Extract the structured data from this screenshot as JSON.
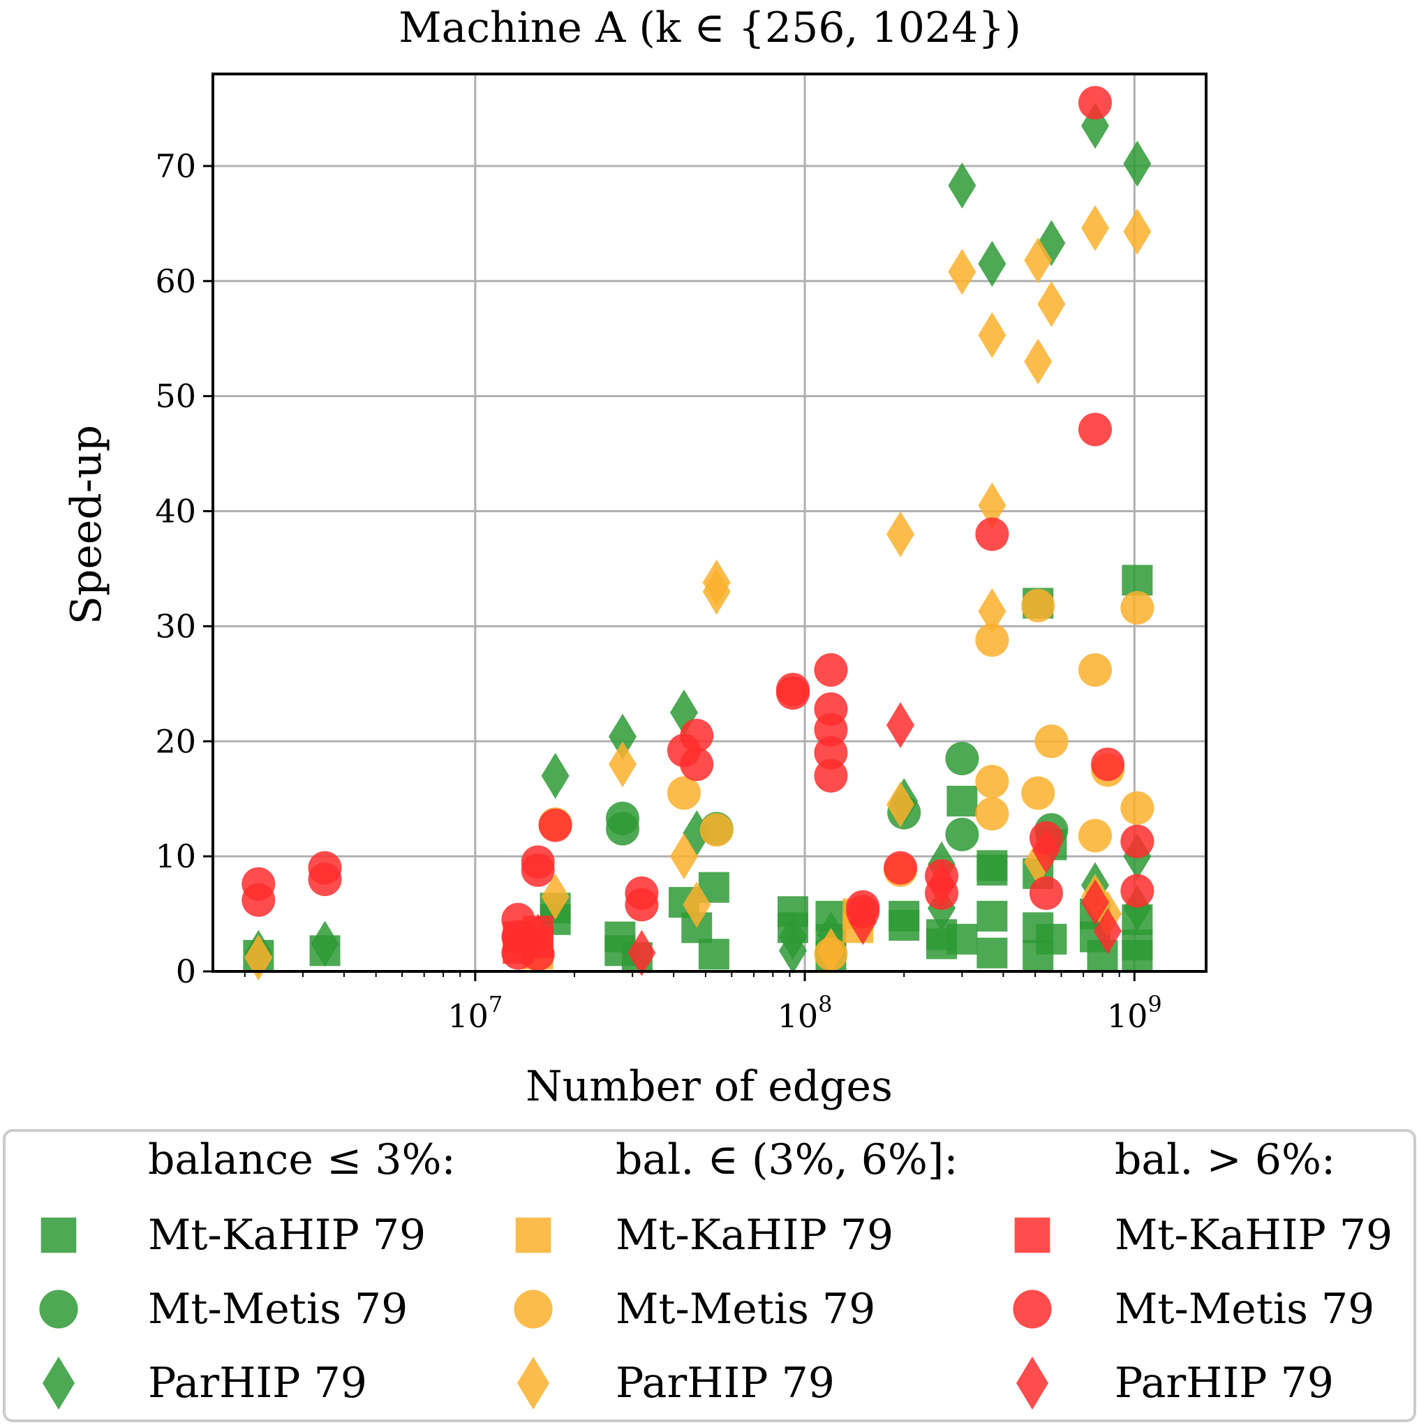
{
  "chart_data": {
    "type": "scatter",
    "title": "Machine A (k ∈ {256, 1024})",
    "xlabel": "Number of edges",
    "ylabel": "Speed-up",
    "xscale": "log",
    "xlim": [
      1600000.0,
      1650000000.0
    ],
    "ylim": [
      0,
      78
    ],
    "xticks": [
      {
        "value": 10000000.0,
        "label": "10^7"
      },
      {
        "value": 100000000.0,
        "label": "10^8"
      },
      {
        "value": 1000000000.0,
        "label": "10^9"
      }
    ],
    "yticks": [
      0,
      10,
      20,
      30,
      40,
      50,
      60,
      70
    ],
    "grid": true,
    "legend_placement": "bottom",
    "legend_groups": [
      {
        "header": "balance ≤ 3%:",
        "color": "#2e9a35"
      },
      {
        "header": "bal. ∈ (3%, 6%]:",
        "color": "#fbb02d"
      },
      {
        "header": "bal. > 6%:",
        "color": "#ff2d2d"
      }
    ],
    "series": [
      {
        "name": "Mt-KaHIP 79",
        "group": "balance ≤ 3%:",
        "marker": "square",
        "color": "#2e9a35",
        "points": [
          [
            2200000.0,
            1.4
          ],
          [
            3500000.0,
            1.8
          ],
          [
            17500000.0,
            4.5
          ],
          [
            17500000.0,
            5.5
          ],
          [
            27500000.0,
            3.0
          ],
          [
            27500000.0,
            1.8
          ],
          [
            31000000.0,
            1.2
          ],
          [
            43000000.0,
            6.0
          ],
          [
            47000000.0,
            3.8
          ],
          [
            53000000.0,
            7.3
          ],
          [
            53000000.0,
            1.5
          ],
          [
            92000000.0,
            5.2
          ],
          [
            92000000.0,
            3.8
          ],
          [
            120000000.0,
            4.8
          ],
          [
            120000000.0,
            2.8
          ],
          [
            120000000.0,
            1.4
          ],
          [
            200000000.0,
            4.8
          ],
          [
            200000000.0,
            4.0
          ],
          [
            260000000.0,
            3.2
          ],
          [
            260000000.0,
            2.4
          ],
          [
            300000000.0,
            14.8
          ],
          [
            300000000.0,
            2.8
          ],
          [
            370000000.0,
            9.2
          ],
          [
            370000000.0,
            8.8
          ],
          [
            370000000.0,
            4.8
          ],
          [
            370000000.0,
            1.6
          ],
          [
            510000000.0,
            32.0
          ],
          [
            510000000.0,
            8.5
          ],
          [
            510000000.0,
            3.8
          ],
          [
            510000000.0,
            1.4
          ],
          [
            560000000.0,
            11.0
          ],
          [
            560000000.0,
            2.8
          ],
          [
            760000000.0,
            5.0
          ],
          [
            760000000.0,
            3.0
          ],
          [
            800000000.0,
            1.4
          ],
          [
            1020000000.0,
            34.0
          ],
          [
            1020000000.0,
            4.5
          ],
          [
            1020000000.0,
            2.3
          ],
          [
            1020000000.0,
            1.4
          ]
        ]
      },
      {
        "name": "Mt-Metis 79",
        "group": "balance ≤ 3%:",
        "marker": "circle",
        "color": "#2e9a35",
        "points": [
          [
            28000000.0,
            13.3
          ],
          [
            28000000.0,
            12.4
          ],
          [
            54000000.0,
            12.4
          ],
          [
            200000000.0,
            13.8
          ],
          [
            300000000.0,
            18.5
          ],
          [
            300000000.0,
            11.9
          ],
          [
            560000000.0,
            12.3
          ]
        ]
      },
      {
        "name": "ParHIP 79",
        "group": "balance ≤ 3%:",
        "marker": "diamond",
        "color": "#2e9a35",
        "points": [
          [
            2200000.0,
            1.6
          ],
          [
            3500000.0,
            2.4
          ],
          [
            17500000.0,
            17.0
          ],
          [
            28000000.0,
            20.4
          ],
          [
            43000000.0,
            22.5
          ],
          [
            47000000.0,
            12.0
          ],
          [
            92000000.0,
            3.0
          ],
          [
            92000000.0,
            1.8
          ],
          [
            120000000.0,
            3.2
          ],
          [
            200000000.0,
            14.8
          ],
          [
            260000000.0,
            9.3
          ],
          [
            260000000.0,
            5.5
          ],
          [
            300000000.0,
            68.3
          ],
          [
            370000000.0,
            61.5
          ],
          [
            560000000.0,
            63.3
          ],
          [
            760000000.0,
            73.5
          ],
          [
            760000000.0,
            7.5
          ],
          [
            1020000000.0,
            70.2
          ],
          [
            1020000000.0,
            10.0
          ],
          [
            1020000000.0,
            5.5
          ]
        ]
      },
      {
        "name": "Mt-KaHIP 79",
        "group": "bal. ∈ (3%, 6%]:",
        "marker": "square",
        "color": "#fbb02d",
        "points": [
          [
            15500000.0,
            1.5
          ],
          [
            145000000.0,
            3.8
          ],
          [
            145000000.0,
            5.0
          ]
        ]
      },
      {
        "name": "Mt-Metis 79",
        "group": "bal. ∈ (3%, 6%]:",
        "marker": "circle",
        "color": "#fbb02d",
        "points": [
          [
            17500000.0,
            12.8
          ],
          [
            43000000.0,
            15.5
          ],
          [
            54000000.0,
            12.3
          ],
          [
            120000000.0,
            1.5
          ],
          [
            195000000.0,
            8.8
          ],
          [
            370000000.0,
            28.8
          ],
          [
            370000000.0,
            16.5
          ],
          [
            370000000.0,
            13.7
          ],
          [
            510000000.0,
            31.8
          ],
          [
            510000000.0,
            15.5
          ],
          [
            560000000.0,
            20.0
          ],
          [
            760000000.0,
            26.2
          ],
          [
            760000000.0,
            11.8
          ],
          [
            830000000.0,
            17.5
          ],
          [
            1020000000.0,
            31.6
          ],
          [
            1020000000.0,
            14.2
          ]
        ]
      },
      {
        "name": "ParHIP 79",
        "group": "bal. ∈ (3%, 6%]:",
        "marker": "diamond",
        "color": "#fbb02d",
        "points": [
          [
            2200000.0,
            1.2
          ],
          [
            17500000.0,
            6.5
          ],
          [
            28000000.0,
            18.0
          ],
          [
            43000000.0,
            10.0
          ],
          [
            47000000.0,
            5.8
          ],
          [
            54000000.0,
            33.8
          ],
          [
            54000000.0,
            33.0
          ],
          [
            120000000.0,
            1.8
          ],
          [
            195000000.0,
            38.0
          ],
          [
            195000000.0,
            14.5
          ],
          [
            300000000.0,
            60.8
          ],
          [
            370000000.0,
            55.3
          ],
          [
            370000000.0,
            40.5
          ],
          [
            370000000.0,
            31.3
          ],
          [
            510000000.0,
            61.8
          ],
          [
            510000000.0,
            53.0
          ],
          [
            510000000.0,
            9.5
          ],
          [
            560000000.0,
            58.0
          ],
          [
            760000000.0,
            64.6
          ],
          [
            760000000.0,
            6.5
          ],
          [
            830000000.0,
            5.0
          ],
          [
            1020000000.0,
            64.3
          ]
        ]
      },
      {
        "name": "Mt-KaHIP 79",
        "group": "bal. > 6%:",
        "marker": "square",
        "color": "#ff2d2d",
        "points": [
          [
            13500000.0,
            3.0
          ],
          [
            13500000.0,
            2.0
          ],
          [
            15500000.0,
            3.5
          ],
          [
            15500000.0,
            2.5
          ]
        ]
      },
      {
        "name": "Mt-Metis 79",
        "group": "bal. > 6%:",
        "marker": "circle",
        "color": "#ff2d2d",
        "points": [
          [
            2200000.0,
            7.6
          ],
          [
            2200000.0,
            6.2
          ],
          [
            3500000.0,
            9.0
          ],
          [
            3500000.0,
            8.0
          ],
          [
            13500000.0,
            4.5
          ],
          [
            13500000.0,
            3.0
          ],
          [
            13500000.0,
            1.6
          ],
          [
            15500000.0,
            9.5
          ],
          [
            15500000.0,
            8.8
          ],
          [
            15500000.0,
            1.5
          ],
          [
            17500000.0,
            12.7
          ],
          [
            32000000.0,
            6.8
          ],
          [
            32000000.0,
            5.8
          ],
          [
            43000000.0,
            19.2
          ],
          [
            47000000.0,
            20.5
          ],
          [
            47000000.0,
            18.0
          ],
          [
            92000000.0,
            24.5
          ],
          [
            92000000.0,
            24.2
          ],
          [
            120000000.0,
            26.2
          ],
          [
            120000000.0,
            22.8
          ],
          [
            120000000.0,
            21.0
          ],
          [
            120000000.0,
            19.0
          ],
          [
            120000000.0,
            17.0
          ],
          [
            150000000.0,
            5.2
          ],
          [
            150000000.0,
            5.6
          ],
          [
            195000000.0,
            9.0
          ],
          [
            260000000.0,
            8.3
          ],
          [
            260000000.0,
            6.8
          ],
          [
            370000000.0,
            38.0
          ],
          [
            540000000.0,
            11.6
          ],
          [
            540000000.0,
            6.8
          ],
          [
            760000000.0,
            75.5
          ],
          [
            760000000.0,
            47.1
          ],
          [
            830000000.0,
            18.0
          ],
          [
            1020000000.0,
            11.3
          ],
          [
            1020000000.0,
            7.0
          ]
        ]
      },
      {
        "name": "ParHIP 79",
        "group": "bal. > 6%:",
        "marker": "diamond",
        "color": "#ff2d2d",
        "points": [
          [
            15500000.0,
            3.0
          ],
          [
            32000000.0,
            1.6
          ],
          [
            150000000.0,
            4.3
          ],
          [
            195000000.0,
            21.4
          ],
          [
            260000000.0,
            7.6
          ],
          [
            540000000.0,
            10.5
          ],
          [
            760000000.0,
            6.0
          ],
          [
            830000000.0,
            3.5
          ]
        ]
      }
    ]
  }
}
